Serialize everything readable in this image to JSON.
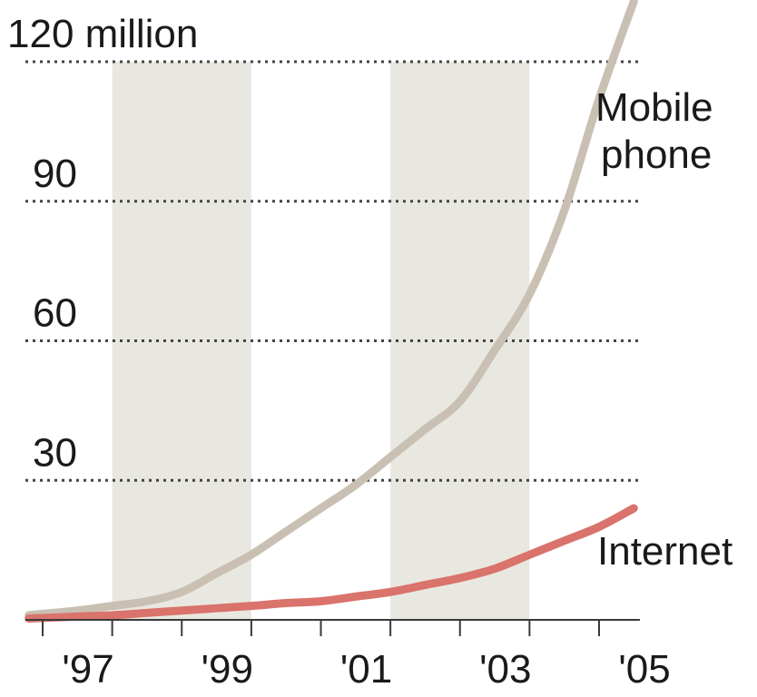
{
  "chart_data": {
    "type": "line",
    "title": "",
    "xlabel": "",
    "ylabel": "",
    "ylim": [
      0,
      120
    ],
    "xlim": [
      1996.8,
      2006.4
    ],
    "y_ticks": [
      {
        "value": 120,
        "label": "120 million"
      },
      {
        "value": 90,
        "label": "90"
      },
      {
        "value": 60,
        "label": "60"
      },
      {
        "value": 30,
        "label": "30"
      }
    ],
    "x_ticks": [
      {
        "value": 1997,
        "label": "'97"
      },
      {
        "value": 1999,
        "label": "'99"
      },
      {
        "value": 2001,
        "label": "'01"
      },
      {
        "value": 2003,
        "label": "'03"
      },
      {
        "value": 2005,
        "label": "'05"
      }
    ],
    "shaded_bands": [
      {
        "from": 1998,
        "to": 2000
      },
      {
        "from": 2002,
        "to": 2004
      }
    ],
    "grid": "horizontal dotted",
    "series": [
      {
        "name": "Mobile phone",
        "color": "#c9c0b3",
        "x": [
          1996.8,
          1997.5,
          1998,
          1998.5,
          1999,
          1999.5,
          2000,
          2000.5,
          2001,
          2001.5,
          2002,
          2002.5,
          2003,
          2003.5,
          2004,
          2004.5,
          2005,
          2005.5
        ],
        "y": [
          1,
          2,
          3,
          4,
          6,
          10,
          14,
          19,
          24,
          29,
          35,
          41,
          47,
          58,
          70,
          88,
          112,
          133
        ]
      },
      {
        "name": "Internet",
        "color": "#d9736b",
        "x": [
          1996.8,
          1997.5,
          1998,
          1998.5,
          1999,
          1999.5,
          2000,
          2000.5,
          2001,
          2001.5,
          2002,
          2002.5,
          2003,
          2003.5,
          2004,
          2004.5,
          2005,
          2005.5
        ],
        "y": [
          0.3,
          0.7,
          1,
          1.5,
          2,
          2.5,
          3,
          3.6,
          4,
          5,
          6,
          7.5,
          9,
          11,
          14,
          17,
          20,
          24
        ]
      }
    ]
  }
}
